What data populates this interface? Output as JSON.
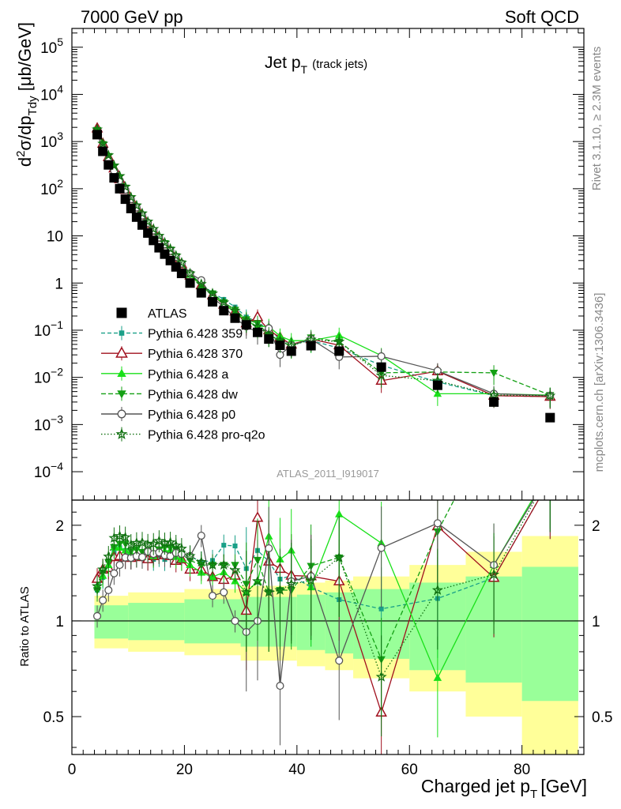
{
  "header": {
    "left": "7000 GeV pp",
    "right": "Soft QCD"
  },
  "side_labels": {
    "rivet": "Rivet 3.1.10, ≥ 2.3M events",
    "mcplots": "mcplots.cern.ch [arXiv:1306.3436]"
  },
  "chart_data": {
    "type": "line",
    "title": "Jet p",
    "title_sub": "T",
    "title_suffix": "(track jets)",
    "analysis_tag": "ATLAS_2011_I919017",
    "ylabel": "d²σ/dp_Tdy [μb/GeV]",
    "xlabel": "Charged jet p",
    "xlabel_sub": "T",
    "xlabel_suffix": "[GeV]",
    "ratio_ylabel": "Ratio to ATLAS",
    "xlim": [
      0,
      91
    ],
    "ylim": [
      2.5e-05,
      250000
    ],
    "yscale": "log",
    "ratio_ylim": [
      0.38,
      2.4
    ],
    "ratio_yscale": "log",
    "x_ticks": [
      "0",
      "20",
      "40",
      "60",
      "80"
    ],
    "y_ticks": [
      {
        "base": "10",
        "exp": "5"
      },
      {
        "base": "10",
        "exp": "4"
      },
      {
        "base": "10",
        "exp": "3"
      },
      {
        "base": "10",
        "exp": "2"
      },
      {
        "base": "10",
        "exp": ""
      },
      {
        "base": "1",
        "exp": ""
      },
      {
        "base": "10",
        "exp": "−1"
      },
      {
        "base": "10",
        "exp": "−2"
      },
      {
        "base": "10",
        "exp": "−3"
      },
      {
        "base": "10",
        "exp": "−4"
      }
    ],
    "ratio_ticks": [
      "2",
      "1",
      "0.5"
    ],
    "x": [
      4.5,
      5.5,
      6.5,
      7.5,
      8.5,
      9.5,
      10.5,
      11.5,
      12.5,
      13.5,
      14.5,
      15.5,
      16.5,
      17.5,
      18.5,
      19.5,
      21,
      23,
      25,
      27,
      29,
      31,
      33,
      35,
      37,
      39,
      42.5,
      47.5,
      55,
      65,
      75,
      85
    ],
    "series": [
      {
        "name": "ATLAS",
        "color": "#000000",
        "marker": "square",
        "dash": "none",
        "values": [
          1400,
          620,
          320,
          170,
          100,
          60,
          38,
          25,
          17,
          11.5,
          8,
          5.6,
          4.1,
          3.0,
          2.2,
          1.6,
          1.0,
          0.62,
          0.4,
          0.26,
          0.18,
          0.13,
          0.09,
          0.065,
          0.048,
          0.036,
          0.047,
          0.036,
          0.0165,
          0.0068,
          0.003,
          0.0014
        ]
      },
      {
        "name": "Pythia 6.428 359",
        "color": "#1aa088",
        "marker": "smallsquare",
        "dash": "5,3",
        "values": [
          1750,
          850,
          470,
          280,
          170,
          100,
          60,
          40,
          27,
          18,
          12.5,
          9,
          6.4,
          4.9,
          3.6,
          2.6,
          1.6,
          0.95,
          0.62,
          0.45,
          0.31,
          0.19,
          0.15,
          0.1,
          0.065,
          0.05,
          0.06,
          0.042,
          0.018,
          0.008,
          0.0041,
          0.0039
        ]
      },
      {
        "name": "Pythia 6.428 370",
        "color": "#a0101e",
        "marker": "otriangle",
        "dash": "none",
        "values": [
          1900,
          900,
          470,
          270,
          160,
          95,
          60,
          40,
          27,
          18,
          12.8,
          9.2,
          6.6,
          4.8,
          3.4,
          2.5,
          1.45,
          0.9,
          0.55,
          0.35,
          0.25,
          0.14,
          0.19,
          0.1,
          0.07,
          0.05,
          0.065,
          0.048,
          0.0085,
          0.0135,
          0.0041,
          0.0039
        ]
      },
      {
        "name": "Pythia 6.428 a",
        "color": "#19e019",
        "marker": "triangle",
        "dash": "none",
        "values": [
          1800,
          860,
          480,
          290,
          170,
          100,
          62,
          40,
          27,
          19,
          12.8,
          9.2,
          6.8,
          5.0,
          3.5,
          2.5,
          1.5,
          0.88,
          0.55,
          0.37,
          0.24,
          0.16,
          0.12,
          0.12,
          0.075,
          0.06,
          0.06,
          0.078,
          0.029,
          0.0045,
          0.0045,
          0.0042
        ]
      },
      {
        "name": "Pythia 6.428 dw",
        "color": "#14a014",
        "marker": "dtriangle",
        "dash": "6,3",
        "values": [
          1750,
          880,
          490,
          290,
          175,
          105,
          63,
          42,
          28,
          19,
          13,
          9.4,
          7.0,
          5.1,
          3.7,
          2.6,
          1.55,
          0.93,
          0.6,
          0.39,
          0.27,
          0.17,
          0.14,
          0.08,
          0.06,
          0.045,
          0.07,
          0.057,
          0.0125,
          0.013,
          0.0125,
          0.0042
        ]
      },
      {
        "name": "Pythia 6.428 p0",
        "color": "#555555",
        "marker": "ocircle",
        "dash": "none",
        "values": [
          1450,
          720,
          400,
          240,
          150,
          95,
          60,
          40,
          27,
          19,
          13,
          9.2,
          6.6,
          4.8,
          3.6,
          2.6,
          1.6,
          1.15,
          0.48,
          0.32,
          0.18,
          0.12,
          0.09,
          0.11,
          0.03,
          0.048,
          0.065,
          0.027,
          0.028,
          0.0138,
          0.0045,
          0.0041
        ]
      },
      {
        "name": "Pythia 6.428 pro-q2o",
        "color": "#107010",
        "marker": "star",
        "dash": "1.5,2.5",
        "values": [
          1800,
          900,
          510,
          310,
          185,
          110,
          66,
          44,
          30,
          20,
          14,
          10,
          7.2,
          5.3,
          3.8,
          2.7,
          1.6,
          0.95,
          0.6,
          0.39,
          0.26,
          0.16,
          0.12,
          0.08,
          0.06,
          0.047,
          0.063,
          0.057,
          0.011,
          0.0085,
          0.0042,
          0.0041
        ]
      }
    ],
    "data_band": {
      "edges": [
        4,
        10,
        20,
        30,
        40,
        45,
        50,
        60,
        70,
        80,
        90
      ],
      "stat_up": [
        1.12,
        1.14,
        1.17,
        1.19,
        1.21,
        1.23,
        1.26,
        1.32,
        1.38,
        1.48
      ],
      "stat_dn": [
        0.88,
        0.87,
        0.85,
        0.83,
        0.81,
        0.79,
        0.76,
        0.7,
        0.64,
        0.56
      ],
      "tot_up": [
        1.2,
        1.23,
        1.26,
        1.29,
        1.32,
        1.34,
        1.38,
        1.5,
        1.65,
        1.85
      ],
      "tot_dn": [
        0.82,
        0.8,
        0.78,
        0.75,
        0.72,
        0.7,
        0.66,
        0.6,
        0.5,
        0.35
      ]
    },
    "legend_position": "lower-left"
  }
}
